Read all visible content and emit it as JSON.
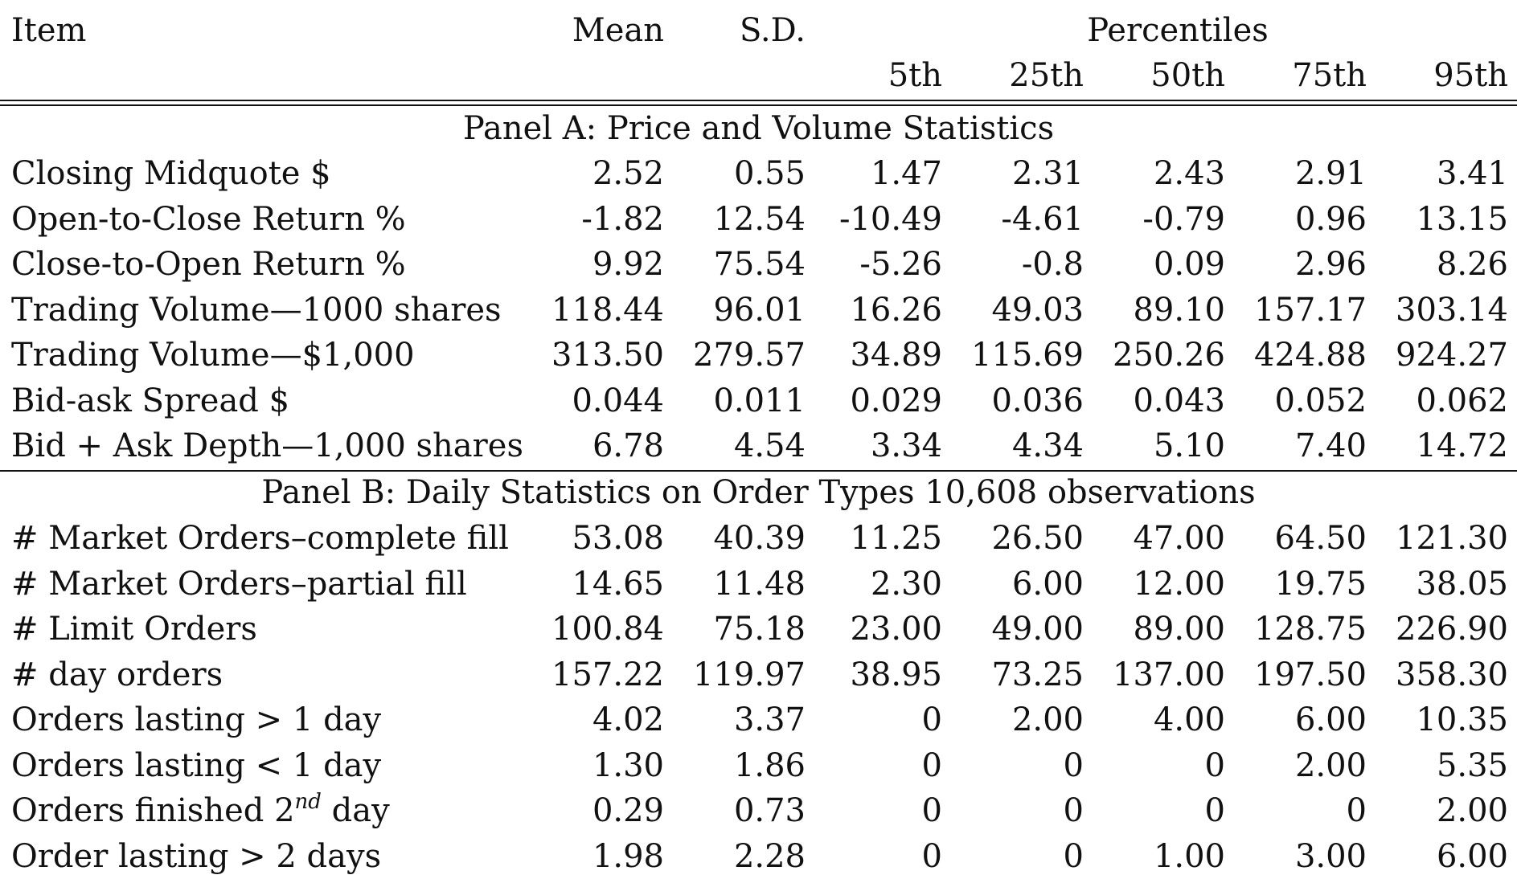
{
  "header": {
    "item": "Item",
    "mean": "Mean",
    "sd": "S.D.",
    "percentiles": "Percentiles",
    "p5": "5th",
    "p25": "25th",
    "p50": "50th",
    "p75": "75th",
    "p95": "95th"
  },
  "panel_a": {
    "title": "Panel A: Price and Volume Statistics",
    "rows": [
      {
        "label": "Closing Midquote $",
        "values": [
          "2.52",
          "0.55",
          "1.47",
          "2.31",
          "2.43",
          "2.91",
          "3.41"
        ]
      },
      {
        "label": "Open-to-Close Return %",
        "values": [
          "-1.82",
          "12.54",
          "-10.49",
          "-4.61",
          "-0.79",
          "0.96",
          "13.15"
        ]
      },
      {
        "label": "Close-to-Open Return %",
        "values": [
          "9.92",
          "75.54",
          "-5.26",
          "-0.8",
          "0.09",
          "2.96",
          "8.26"
        ]
      },
      {
        "label": "Trading Volume—1000 shares",
        "values": [
          "118.44",
          "96.01",
          "16.26",
          "49.03",
          "89.10",
          "157.17",
          "303.14"
        ]
      },
      {
        "label": "Trading Volume—$1,000",
        "values": [
          "313.50",
          "279.57",
          "34.89",
          "115.69",
          "250.26",
          "424.88",
          "924.27"
        ]
      },
      {
        "label": "Bid-ask Spread $",
        "values": [
          "0.044",
          "0.011",
          "0.029",
          "0.036",
          "0.043",
          "0.052",
          "0.062"
        ]
      },
      {
        "label": "Bid + Ask Depth—1,000 shares",
        "values": [
          "6.78",
          "4.54",
          "3.34",
          "4.34",
          "5.10",
          "7.40",
          "14.72"
        ]
      }
    ]
  },
  "panel_b": {
    "title": "Panel B: Daily Statistics on Order Types 10,608 observations",
    "rows": [
      {
        "label": "# Market Orders–complete fill",
        "values": [
          "53.08",
          "40.39",
          "11.25",
          "26.50",
          "47.00",
          "64.50",
          "121.30"
        ]
      },
      {
        "label": "# Market Orders–partial fill",
        "values": [
          "14.65",
          "11.48",
          "2.30",
          "6.00",
          "12.00",
          "19.75",
          "38.05"
        ]
      },
      {
        "label": "# Limit Orders",
        "values": [
          "100.84",
          "75.18",
          "23.00",
          "49.00",
          "89.00",
          "128.75",
          "226.90"
        ]
      },
      {
        "label": "# day orders",
        "values": [
          "157.22",
          "119.97",
          "38.95",
          "73.25",
          "137.00",
          "197.50",
          "358.30"
        ]
      },
      {
        "label": "Orders lasting > 1 day",
        "values": [
          "4.02",
          "3.37",
          "0",
          "2.00",
          "4.00",
          "6.00",
          "10.35"
        ]
      },
      {
        "label": "Orders lasting < 1 day",
        "values": [
          "1.30",
          "1.86",
          "0",
          "0",
          "0",
          "2.00",
          "5.35"
        ]
      },
      {
        "label": "Orders finished 2",
        "label_sup": "nd",
        "label_after": " day",
        "values": [
          "0.29",
          "0.73",
          "0",
          "0",
          "0",
          "0",
          "2.00"
        ]
      },
      {
        "label": "Order lasting > 2 days",
        "values": [
          "1.98",
          "2.28",
          "0",
          "0",
          "1.00",
          "3.00",
          "6.00"
        ]
      }
    ]
  }
}
